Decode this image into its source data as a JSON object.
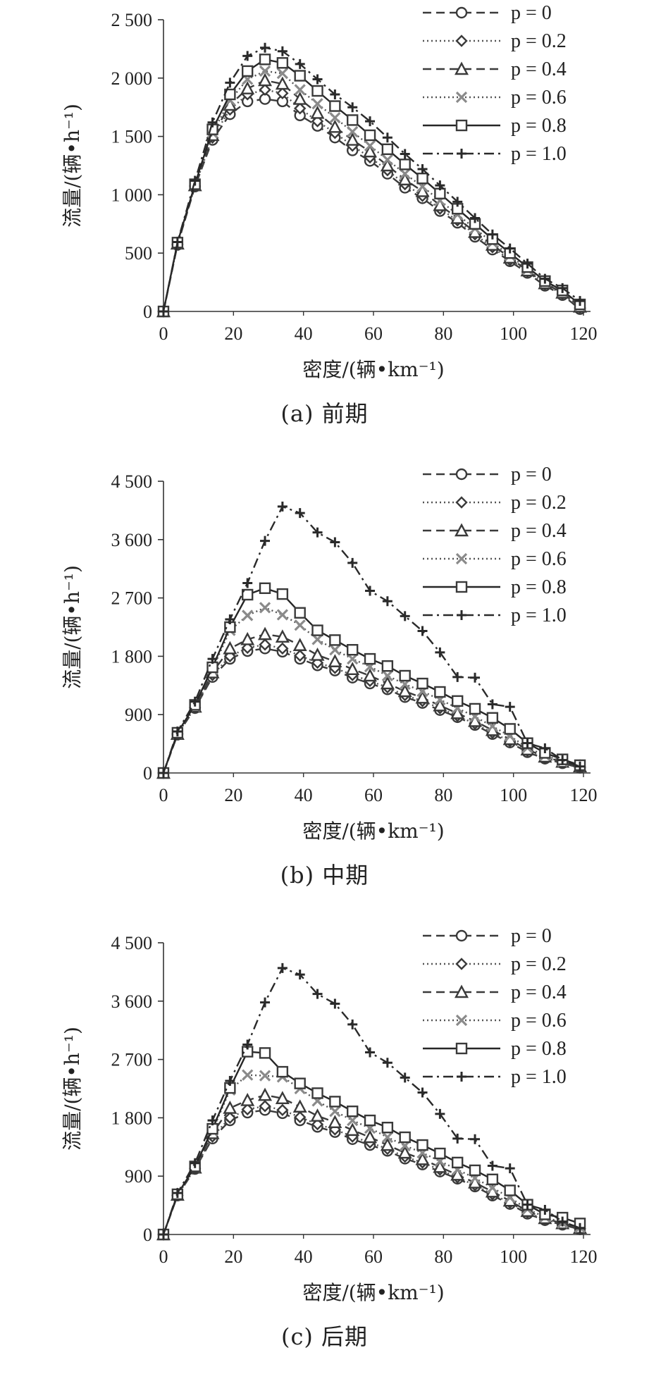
{
  "chart_data": [
    {
      "type": "line",
      "caption": "(a) 前期",
      "xlabel": "密度/(辆•km⁻¹)",
      "ylabel": "流量/(辆•h⁻¹)",
      "xlim": [
        0,
        120
      ],
      "ylim": [
        0,
        2500
      ],
      "xticks": [
        0,
        20,
        40,
        60,
        80,
        100,
        120
      ],
      "yticks": [
        0,
        500,
        1000,
        1500,
        2000,
        2500
      ],
      "ytick_labels": [
        "0",
        "500",
        "1 000",
        "1 500",
        "2 000",
        "2 500"
      ],
      "legend_position": "top-right",
      "x": [
        0,
        4,
        9,
        14,
        19,
        24,
        29,
        34,
        39,
        44,
        49,
        54,
        59,
        64,
        69,
        74,
        79,
        84,
        89,
        94,
        99,
        104,
        109,
        114,
        119
      ],
      "series": [
        {
          "name": "p = 0",
          "style": "dashed",
          "marker": "circle",
          "values": [
            0,
            570,
            1070,
            1470,
            1690,
            1800,
            1820,
            1800,
            1680,
            1590,
            1490,
            1380,
            1290,
            1180,
            1060,
            970,
            860,
            760,
            640,
            530,
            430,
            330,
            220,
            140,
            20
          ]
        },
        {
          "name": "p = 0.2",
          "style": "dotted",
          "marker": "diamond",
          "values": [
            0,
            575,
            1075,
            1490,
            1730,
            1860,
            1900,
            1870,
            1740,
            1630,
            1530,
            1420,
            1320,
            1210,
            1090,
            990,
            880,
            780,
            660,
            550,
            440,
            340,
            230,
            150,
            30
          ]
        },
        {
          "name": "p = 0.4",
          "style": "dashed",
          "marker": "triangle",
          "values": [
            0,
            580,
            1080,
            1510,
            1770,
            1910,
            1980,
            1950,
            1820,
            1700,
            1580,
            1470,
            1370,
            1250,
            1130,
            1030,
            910,
            800,
            680,
            570,
            460,
            350,
            240,
            160,
            40
          ]
        },
        {
          "name": "p = 0.6",
          "style": "dotted",
          "marker": "x",
          "values": [
            0,
            585,
            1085,
            1530,
            1810,
            1990,
            2060,
            2040,
            1900,
            1780,
            1660,
            1540,
            1420,
            1300,
            1180,
            1070,
            950,
            830,
            710,
            590,
            480,
            360,
            250,
            170,
            50
          ]
        },
        {
          "name": "p = 0.8",
          "style": "solid",
          "marker": "square",
          "values": [
            0,
            590,
            1090,
            1560,
            1860,
            2060,
            2160,
            2130,
            2020,
            1890,
            1760,
            1640,
            1510,
            1390,
            1260,
            1140,
            1010,
            880,
            750,
            620,
            500,
            380,
            260,
            180,
            60
          ]
        },
        {
          "name": "p = 1.0",
          "style": "dashdot",
          "marker": "plus",
          "values": [
            0,
            595,
            1120,
            1620,
            1960,
            2190,
            2260,
            2230,
            2120,
            1990,
            1860,
            1750,
            1630,
            1490,
            1350,
            1220,
            1080,
            940,
            800,
            660,
            540,
            410,
            280,
            200,
            90
          ]
        }
      ]
    },
    {
      "type": "line",
      "caption": "(b) 中期",
      "xlabel": "密度/(辆•km⁻¹)",
      "ylabel": "流量/(辆•h⁻¹)",
      "xlim": [
        0,
        120
      ],
      "ylim": [
        0,
        4500
      ],
      "xticks": [
        0,
        20,
        40,
        60,
        80,
        100,
        120
      ],
      "yticks": [
        0,
        900,
        1800,
        2700,
        3600,
        4500
      ],
      "ytick_labels": [
        "0",
        "900",
        "1 800",
        "2 700",
        "3 600",
        "4 500"
      ],
      "legend_position": "top-right",
      "x": [
        0,
        4,
        9,
        14,
        19,
        24,
        29,
        34,
        39,
        44,
        49,
        54,
        59,
        64,
        69,
        74,
        79,
        84,
        89,
        94,
        99,
        104,
        109,
        114,
        119
      ],
      "series": [
        {
          "name": "p = 0",
          "style": "dashed",
          "marker": "circle",
          "values": [
            0,
            590,
            1000,
            1480,
            1760,
            1880,
            1920,
            1870,
            1760,
            1660,
            1580,
            1470,
            1380,
            1290,
            1170,
            1080,
            970,
            860,
            740,
            600,
            470,
            320,
            220,
            150,
            80
          ]
        },
        {
          "name": "p = 0.2",
          "style": "dotted",
          "marker": "diamond",
          "values": [
            0,
            600,
            1010,
            1510,
            1800,
            1930,
            1980,
            1920,
            1810,
            1700,
            1620,
            1510,
            1420,
            1320,
            1200,
            1110,
            1000,
            880,
            760,
            620,
            490,
            340,
            230,
            160,
            90
          ]
        },
        {
          "name": "p = 0.4",
          "style": "dashed",
          "marker": "triangle",
          "values": [
            0,
            600,
            1020,
            1550,
            1920,
            2060,
            2140,
            2100,
            1970,
            1820,
            1720,
            1600,
            1500,
            1380,
            1260,
            1160,
            1040,
            920,
            800,
            660,
            520,
            360,
            250,
            170,
            100
          ]
        },
        {
          "name": "p = 0.6",
          "style": "dotted",
          "marker": "x",
          "values": [
            0,
            610,
            1030,
            1600,
            2200,
            2430,
            2550,
            2440,
            2280,
            2060,
            1900,
            1760,
            1640,
            1500,
            1370,
            1260,
            1130,
            1000,
            870,
            720,
            570,
            390,
            270,
            180,
            110
          ]
        },
        {
          "name": "p = 0.8",
          "style": "solid",
          "marker": "square",
          "values": [
            0,
            620,
            1050,
            1630,
            2250,
            2750,
            2850,
            2760,
            2470,
            2200,
            2050,
            1900,
            1760,
            1650,
            1500,
            1380,
            1250,
            1110,
            990,
            850,
            680,
            460,
            310,
            210,
            120
          ]
        },
        {
          "name": "p = 1.0",
          "style": "dashdot",
          "marker": "plus",
          "values": [
            0,
            640,
            1100,
            1760,
            2370,
            2930,
            3580,
            4110,
            4010,
            3710,
            3560,
            3240,
            2810,
            2650,
            2420,
            2190,
            1860,
            1480,
            1470,
            1060,
            1020,
            460,
            380,
            200,
            100
          ]
        }
      ]
    },
    {
      "type": "line",
      "caption": "(c) 后期",
      "xlabel": "密度/(辆•km⁻¹)",
      "ylabel": "流量/(辆•h⁻¹)",
      "xlim": [
        0,
        120
      ],
      "ylim": [
        0,
        4500
      ],
      "xticks": [
        0,
        20,
        40,
        60,
        80,
        100,
        120
      ],
      "yticks": [
        0,
        900,
        1800,
        2700,
        3600,
        4500
      ],
      "ytick_labels": [
        "0",
        "900",
        "1 800",
        "2 700",
        "3 600",
        "4 500"
      ],
      "legend_position": "top-right",
      "x": [
        0,
        4,
        9,
        14,
        19,
        24,
        29,
        34,
        39,
        44,
        49,
        54,
        59,
        64,
        69,
        74,
        79,
        84,
        89,
        94,
        99,
        104,
        109,
        114,
        119
      ],
      "series": [
        {
          "name": "p = 0",
          "style": "dashed",
          "marker": "circle",
          "values": [
            0,
            600,
            1010,
            1480,
            1760,
            1880,
            1920,
            1870,
            1760,
            1660,
            1580,
            1470,
            1380,
            1290,
            1170,
            1080,
            970,
            860,
            740,
            600,
            470,
            320,
            220,
            150,
            80
          ]
        },
        {
          "name": "p = 0.2",
          "style": "dotted",
          "marker": "diamond",
          "values": [
            0,
            605,
            1020,
            1510,
            1800,
            1930,
            1980,
            1920,
            1810,
            1700,
            1620,
            1510,
            1420,
            1320,
            1200,
            1110,
            1000,
            880,
            760,
            620,
            490,
            340,
            230,
            160,
            90
          ]
        },
        {
          "name": "p = 0.4",
          "style": "dashed",
          "marker": "triangle",
          "values": [
            0,
            610,
            1030,
            1560,
            1950,
            2070,
            2150,
            2100,
            1970,
            1830,
            1730,
            1610,
            1500,
            1380,
            1260,
            1160,
            1040,
            920,
            800,
            660,
            520,
            360,
            250,
            170,
            100
          ]
        },
        {
          "name": "p = 0.6",
          "style": "dotted",
          "marker": "x",
          "values": [
            0,
            615,
            1040,
            1600,
            2230,
            2460,
            2450,
            2430,
            2250,
            2060,
            1900,
            1760,
            1640,
            1500,
            1370,
            1260,
            1130,
            1000,
            870,
            720,
            570,
            390,
            270,
            180,
            110
          ]
        },
        {
          "name": "p = 0.8",
          "style": "solid",
          "marker": "square",
          "values": [
            0,
            620,
            1050,
            1630,
            2260,
            2820,
            2800,
            2510,
            2330,
            2180,
            2050,
            1900,
            1760,
            1650,
            1500,
            1380,
            1250,
            1110,
            990,
            850,
            680,
            460,
            310,
            260,
            170
          ]
        },
        {
          "name": "p = 1.0",
          "style": "dashdot",
          "marker": "plus",
          "values": [
            0,
            640,
            1100,
            1760,
            2370,
            2930,
            3580,
            4110,
            4010,
            3710,
            3560,
            3240,
            2810,
            2650,
            2420,
            2190,
            1860,
            1480,
            1470,
            1060,
            1020,
            460,
            380,
            200,
            100
          ]
        }
      ]
    }
  ]
}
